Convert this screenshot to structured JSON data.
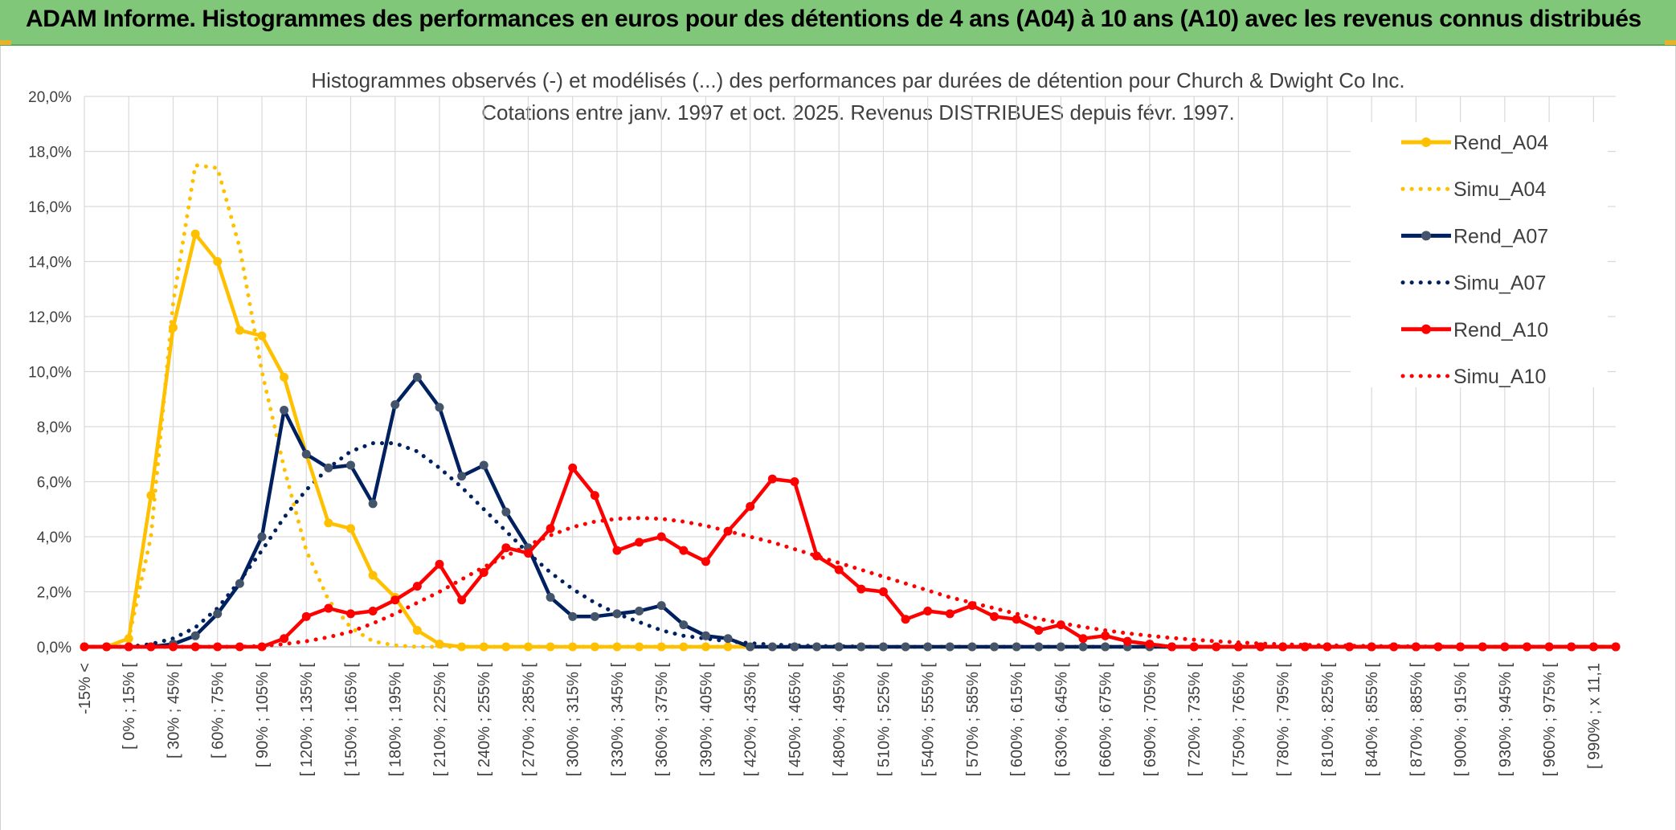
{
  "banner": {
    "title": "ADAM Informe. Histogrammes des performances en euros pour des détentions de 4 ans (A04) à 10 ans (A10) avec les revenus connus distribués"
  },
  "chart_data": {
    "type": "line",
    "title": "Histogrammes observés (-) et modélisés (...) des performances par durées de détention pour Church & Dwight Co Inc.",
    "subtitle": "Cotations entre janv. 1997 et oct. 2025. Revenus DISTRIBUES depuis févr. 1997.",
    "xlabel": "",
    "ylabel": "",
    "ylim": [
      0,
      20
    ],
    "yticks": [
      "0,0%",
      "2,0%",
      "4,0%",
      "6,0%",
      "8,0%",
      "10,0%",
      "12,0%",
      "14,0%",
      "16,0%",
      "18,0%",
      "20,0%"
    ],
    "grid": true,
    "legend_position": "right",
    "x_tick_labels": [
      "-15% <",
      "[ 0% ; 15% [",
      "[ 30% ; 45% [",
      "[ 60% ; 75% [",
      "[ 90% ; 105% [",
      "[ 120% ; 135% [",
      "[ 150% ; 165% [",
      "[ 180% ; 195% [",
      "[ 210% ; 225% [",
      "[ 240% ; 255% [",
      "[ 270% ; 285% [",
      "[ 300% ; 315% [",
      "[ 330% ; 345% [",
      "[ 360% ; 375% [",
      "[ 390% ; 405% [",
      "[ 420% ; 435% [",
      "[ 450% ; 465% [",
      "[ 480% ; 495% [",
      "[ 510% ; 525% [",
      "[ 540% ; 555% [",
      "[ 570% ; 585% [",
      "[ 600% ; 615% [",
      "[ 630% ; 645% [",
      "[ 660% ; 675% [",
      "[ 690% ; 705% [",
      "[ 720% ; 735% [",
      "[ 750% ; 765% [",
      "[ 780% ; 795% [",
      "[ 810% ; 825% [",
      "[ 840% ; 855% [",
      "[ 870% ; 885% [",
      "[ 900% ; 915% [",
      "[ 930% ; 945% [",
      "[ 960% ; 975% [",
      "[ 990% ; x 11,1"
    ],
    "series": [
      {
        "name": "Rend_A04",
        "style": "solid",
        "color": "#ffc000",
        "values": [
          0,
          0,
          0.3,
          5.5,
          11.6,
          15.0,
          14.0,
          11.5,
          11.3,
          9.8,
          7.0,
          4.5,
          4.3,
          2.6,
          1.8,
          0.6,
          0.1,
          0,
          0,
          0,
          0,
          0,
          0,
          0,
          0,
          0,
          0,
          0,
          0,
          0,
          0,
          0,
          0,
          0,
          0,
          0,
          0,
          0,
          0,
          0,
          0,
          0,
          0,
          0,
          0,
          0,
          0,
          0,
          0,
          0,
          0,
          0,
          0,
          0,
          0,
          0,
          0,
          0,
          0,
          0,
          0,
          0,
          0,
          0,
          0,
          0,
          0,
          0,
          0,
          0
        ]
      },
      {
        "name": "Simu_A04",
        "style": "dotted",
        "color": "#ffc000",
        "values": [
          0,
          0,
          0.3,
          4.0,
          12.5,
          17.5,
          17.4,
          14.5,
          10.0,
          6.5,
          3.5,
          1.7,
          0.7,
          0.2,
          0.05,
          0,
          0,
          0,
          0,
          0,
          0,
          0,
          0,
          0,
          0,
          0,
          0,
          0,
          0,
          0,
          0,
          0,
          0,
          0,
          0,
          0,
          0,
          0,
          0,
          0,
          0,
          0,
          0,
          0,
          0,
          0,
          0,
          0,
          0,
          0,
          0,
          0,
          0,
          0,
          0,
          0,
          0,
          0,
          0,
          0,
          0,
          0,
          0,
          0,
          0,
          0,
          0,
          0,
          0,
          0
        ]
      },
      {
        "name": "Rend_A07",
        "style": "solid",
        "color": "#002060",
        "values": [
          0,
          0,
          0,
          0,
          0.1,
          0.4,
          1.2,
          2.3,
          4.0,
          8.6,
          7.0,
          6.5,
          6.6,
          5.2,
          8.8,
          9.8,
          8.7,
          6.2,
          6.6,
          4.9,
          3.6,
          1.8,
          1.1,
          1.1,
          1.2,
          1.3,
          1.5,
          0.8,
          0.4,
          0.3,
          0,
          0,
          0,
          0,
          0,
          0,
          0,
          0,
          0,
          0,
          0,
          0,
          0,
          0,
          0,
          0,
          0,
          0,
          0,
          0,
          0,
          0,
          0,
          0,
          0,
          0,
          0,
          0,
          0,
          0,
          0,
          0,
          0,
          0,
          0,
          0,
          0,
          0,
          0,
          0
        ]
      },
      {
        "name": "Simu_A07",
        "style": "dotted",
        "color": "#002060",
        "values": [
          0,
          0,
          0,
          0.1,
          0.3,
          0.7,
          1.4,
          2.4,
          3.5,
          4.7,
          5.7,
          6.5,
          7.1,
          7.4,
          7.4,
          7.1,
          6.5,
          5.8,
          5.0,
          4.2,
          3.4,
          2.7,
          2.1,
          1.6,
          1.2,
          0.9,
          0.6,
          0.4,
          0.3,
          0.2,
          0.13,
          0.08,
          0.05,
          0.03,
          0.02,
          0.01,
          0,
          0,
          0,
          0,
          0,
          0,
          0,
          0,
          0,
          0,
          0,
          0,
          0,
          0,
          0,
          0,
          0,
          0,
          0,
          0,
          0,
          0,
          0,
          0,
          0,
          0,
          0,
          0,
          0,
          0,
          0,
          0,
          0,
          0
        ]
      },
      {
        "name": "Rend_A10",
        "style": "solid",
        "color": "#ff0000",
        "values": [
          0,
          0,
          0,
          0,
          0,
          0,
          0,
          0,
          0,
          0.3,
          1.1,
          1.4,
          1.2,
          1.3,
          1.7,
          2.2,
          3.0,
          1.7,
          2.7,
          3.6,
          3.4,
          4.3,
          6.5,
          5.5,
          3.5,
          3.8,
          4.0,
          3.5,
          3.1,
          4.2,
          5.1,
          6.1,
          6.0,
          3.3,
          2.8,
          2.1,
          2.0,
          1.0,
          1.3,
          1.2,
          1.5,
          1.1,
          1.0,
          0.6,
          0.8,
          0.3,
          0.4,
          0.2,
          0.1,
          0,
          0,
          0,
          0,
          0,
          0,
          0,
          0,
          0,
          0,
          0,
          0,
          0,
          0,
          0,
          0,
          0,
          0,
          0,
          0,
          0
        ]
      },
      {
        "name": "Simu_A10",
        "style": "dotted",
        "color": "#ff0000",
        "values": [
          0,
          0,
          0,
          0,
          0,
          0,
          0,
          0,
          0.03,
          0.1,
          0.2,
          0.35,
          0.55,
          0.85,
          1.2,
          1.6,
          2.0,
          2.45,
          2.9,
          3.3,
          3.7,
          4.05,
          4.35,
          4.55,
          4.65,
          4.68,
          4.65,
          4.55,
          4.4,
          4.2,
          4.0,
          3.8,
          3.55,
          3.3,
          3.05,
          2.8,
          2.55,
          2.3,
          2.05,
          1.8,
          1.6,
          1.4,
          1.2,
          1.02,
          0.86,
          0.72,
          0.6,
          0.49,
          0.4,
          0.32,
          0.26,
          0.2,
          0.16,
          0.12,
          0.09,
          0.07,
          0.05,
          0.04,
          0.03,
          0.02,
          0.015,
          0.01,
          0,
          0,
          0,
          0,
          0,
          0,
          0,
          0
        ]
      }
    ]
  }
}
